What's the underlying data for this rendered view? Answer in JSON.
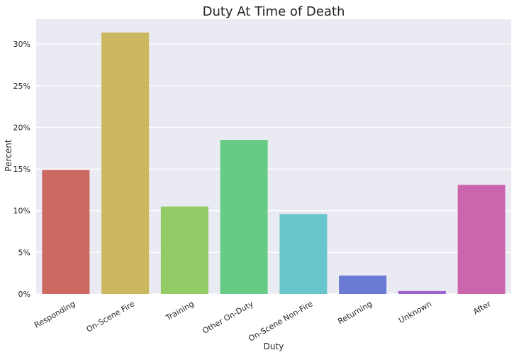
{
  "chart_data": {
    "type": "bar",
    "title": "Duty At Time of Death",
    "xlabel": "Duty",
    "ylabel": "Percent",
    "categories": [
      "Responding",
      "On-Scene Fire",
      "Training",
      "Other On-Duty",
      "On-Scene Non-Fire",
      "Returning",
      "Unknown",
      "After"
    ],
    "values": [
      14.9,
      31.4,
      10.5,
      18.5,
      9.6,
      2.2,
      0.35,
      13.1
    ],
    "colors": [
      "#cc6a62",
      "#ccb761",
      "#93cb66",
      "#66cc84",
      "#68c6cc",
      "#6b7ad4",
      "#9d62d2",
      "#cc65ae"
    ],
    "ylim": [
      0,
      33
    ],
    "yticks": [
      0,
      5,
      10,
      15,
      20,
      25,
      30
    ],
    "ytick_labels": [
      "0%",
      "5%",
      "10%",
      "15%",
      "20%",
      "25%",
      "30%"
    ],
    "grid": true,
    "background": "#eaeaf2"
  }
}
